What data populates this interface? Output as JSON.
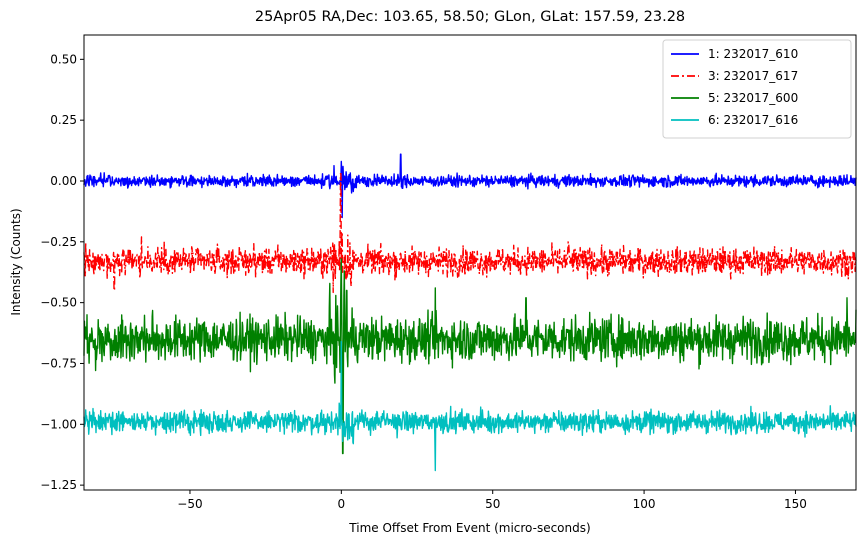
{
  "chart_data": {
    "type": "line",
    "title": "25Apr05 RA,Dec:  103.65,  58.50; GLon, GLat:  157.59,  23.28",
    "xlabel": "Time Offset From Event (micro-seconds)",
    "ylabel": "Intensity (Counts)",
    "xlim": [
      -85,
      170
    ],
    "ylim": [
      -1.27,
      0.6
    ],
    "xticks": [
      -50,
      0,
      50,
      100,
      150
    ],
    "xtick_labels": [
      "−50",
      "0",
      "50",
      "100",
      "150"
    ],
    "yticks": [
      0.5,
      0.25,
      0.0,
      -0.25,
      -0.5,
      -0.75,
      -1.0,
      -1.25
    ],
    "ytick_labels": [
      "0.50",
      "0.25",
      "0.00",
      "−0.25",
      "−0.50",
      "−0.75",
      "−1.00",
      "−1.25"
    ],
    "grid": false,
    "legend_position": "top-right",
    "series": [
      {
        "name": "1: 232017_610",
        "color": "#0000ff",
        "style": "solid",
        "baseline": 0.0,
        "noise": 0.012,
        "features": [
          {
            "x": 0.0,
            "dy": 0.08
          },
          {
            "x": 0.3,
            "dy": -0.15
          },
          {
            "x": 0.6,
            "dy": 0.06
          },
          {
            "x": 19.6,
            "dy": 0.11
          },
          {
            "x": 20.2,
            "dy": -0.03
          }
        ]
      },
      {
        "name": "3: 232017_617",
        "color": "#ff0000",
        "style": "dashdot",
        "baseline": -0.33,
        "noise": 0.028,
        "features": [
          {
            "x": -0.2,
            "dy": 0.36
          },
          {
            "x": 0.2,
            "dy": 0.12
          },
          {
            "x": -75,
            "dy": -0.12
          },
          {
            "x": -66,
            "dy": 0.1
          },
          {
            "x": 75,
            "dy": 0.08
          }
        ]
      },
      {
        "name": "5: 232017_600",
        "color": "#008000",
        "style": "solid",
        "baseline": -0.65,
        "noise": 0.045,
        "features": [
          {
            "x": 0.0,
            "dy": 0.33
          },
          {
            "x": 0.5,
            "dy": -0.47
          },
          {
            "x": 1.0,
            "dy": 0.28
          },
          {
            "x": 1.8,
            "dy": 0.2
          },
          {
            "x": 31.0,
            "dy": 0.21
          },
          {
            "x": 61.0,
            "dy": 0.17
          },
          {
            "x": -84,
            "dy": 0.1
          },
          {
            "x": 167,
            "dy": 0.17
          }
        ]
      },
      {
        "name": "6: 232017_616",
        "color": "#00bfbf",
        "style": "solid",
        "baseline": -0.99,
        "noise": 0.022,
        "features": [
          {
            "x": 0.0,
            "dy": 0.33
          },
          {
            "x": 0.4,
            "dy": -0.08
          },
          {
            "x": 31.0,
            "dy": -0.2
          },
          {
            "x": 1.2,
            "dy": -0.06
          }
        ]
      }
    ]
  }
}
